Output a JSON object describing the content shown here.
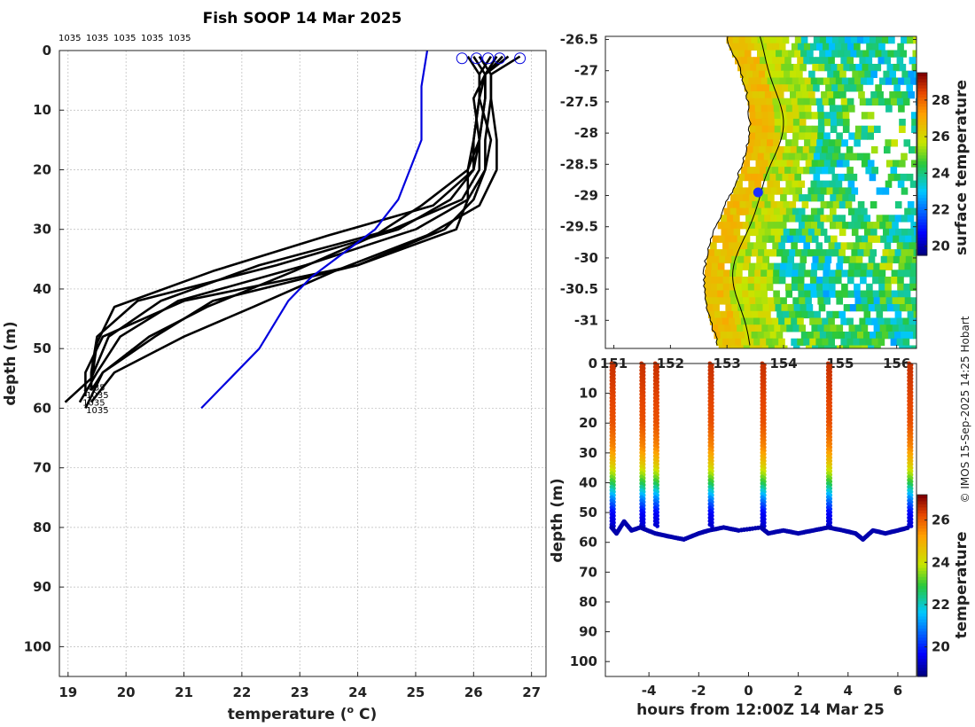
{
  "chart_data": [
    {
      "id": "profiles",
      "type": "line",
      "title": "Fish SOOP 14 Mar 2025",
      "xlabel": "temperature (",
      "xlabel_sup": "o",
      "xlabel_end": " C)",
      "ylabel": "depth (m)",
      "xlim": [
        18.85,
        27.25
      ],
      "ylim": [
        105,
        0
      ],
      "xticks": [
        19,
        20,
        21,
        22,
        23,
        24,
        25,
        26,
        27
      ],
      "yticks": [
        0,
        10,
        20,
        30,
        40,
        50,
        60,
        70,
        80,
        90,
        100
      ],
      "top_labels": [
        "1035",
        "1035",
        "1035",
        "1035",
        "1035"
      ],
      "bottom_labels": [
        "1035",
        "1035",
        "1035",
        "1035"
      ],
      "series": [
        {
          "name": "profile 1",
          "color": "#000000",
          "t": [
            26.0,
            26.2,
            26.0,
            26.1,
            25.9,
            25.9,
            25.7,
            24.0,
            21.0,
            19.6,
            19.3,
            19.3
          ],
          "d": [
            1,
            4,
            8,
            15,
            20,
            25,
            30,
            36,
            42,
            48,
            54,
            58
          ]
        },
        {
          "name": "profile 2",
          "color": "#000000",
          "t": [
            26.3,
            26.1,
            26.1,
            26.0,
            26.0,
            25.6,
            24.7,
            22.6,
            20.2,
            19.5,
            19.4,
            19.4
          ],
          "d": [
            1,
            4,
            8,
            15,
            20,
            25,
            30,
            36,
            42,
            48,
            54,
            57
          ]
        },
        {
          "name": "profile 3",
          "color": "#000000",
          "t": [
            26.5,
            26.2,
            26.2,
            26.1,
            26.0,
            25.3,
            23.5,
            21.5,
            19.8,
            19.5,
            19.4
          ],
          "d": [
            1,
            4,
            8,
            15,
            20,
            26,
            31,
            37,
            43,
            49,
            56
          ]
        },
        {
          "name": "profile 4",
          "color": "#000000",
          "t": [
            26.8,
            26.3,
            26.3,
            26.2,
            26.2,
            25.9,
            25.0,
            23.1,
            20.9,
            19.9,
            19.5,
            19.2
          ],
          "d": [
            1,
            4,
            8,
            15,
            20,
            25,
            30,
            36,
            42,
            48,
            54,
            59
          ]
        },
        {
          "name": "profile 5",
          "color": "#000000",
          "t": [
            26.4,
            26.2,
            26.2,
            26.1,
            26.1,
            25.8,
            24.6,
            22.3,
            20.6,
            19.7,
            19.4,
            18.95
          ],
          "d": [
            1,
            4,
            8,
            15,
            20,
            25,
            30,
            36,
            42,
            48,
            55,
            59
          ]
        },
        {
          "name": "profile 6",
          "color": "#000000",
          "t": [
            26.6,
            26.2,
            26.1,
            26.3,
            26.2,
            26.0,
            25.5,
            24.0,
            21.5,
            20.5,
            19.6,
            19.3
          ],
          "d": [
            1,
            4,
            8,
            15,
            20,
            25,
            30,
            36,
            42,
            48,
            54,
            60
          ]
        },
        {
          "name": "profile 7",
          "color": "#000000",
          "t": [
            26.1,
            26.3,
            26.3,
            26.4,
            26.4,
            26.1,
            25.2,
            23.6,
            22.2,
            21.0,
            19.8,
            19.4
          ],
          "d": [
            1,
            4,
            8,
            15,
            20,
            26,
            31,
            37,
            43,
            48,
            54,
            59
          ]
        },
        {
          "name": "profile 8",
          "color": "#000000",
          "t": [
            25.9,
            26.1,
            26.1,
            26.0,
            25.9,
            25.1,
            24.3,
            22.9,
            21.4,
            20.4,
            19.6,
            19.4
          ],
          "d": [
            1,
            4,
            8,
            15,
            20,
            26,
            31,
            37,
            43,
            48,
            54,
            57
          ]
        },
        {
          "name": "reference",
          "color": "#0000dd",
          "t": [
            25.2,
            25.1,
            25.1,
            24.7,
            24.3,
            23.2,
            22.8,
            22.3,
            21.3
          ],
          "d": [
            0,
            6,
            15,
            25,
            30,
            38,
            42,
            50,
            60
          ]
        }
      ],
      "surface_markers": [
        25.8,
        26.05,
        26.25,
        26.45,
        26.8
      ]
    },
    {
      "id": "map",
      "type": "heatmap",
      "colorbar_label": "surface temperature",
      "colorbar_ticks": [
        20,
        22,
        24,
        26,
        28
      ],
      "colorbar_range": [
        19.5,
        29.5
      ],
      "xlim": [
        150.85,
        156.35
      ],
      "ylim": [
        -31.45,
        -26.45
      ],
      "xticks": [
        151,
        152,
        153,
        154,
        155,
        156
      ],
      "ytick_labels": [
        "-26.5",
        "-27",
        "-27.5",
        "-28",
        "-28.5",
        "-29",
        "-29.5",
        "-30",
        "-30.5",
        "-31"
      ],
      "ytick_values": [
        -26.5,
        -27,
        -27.5,
        -28,
        -28.5,
        -29,
        -29.5,
        -30,
        -30.5,
        -31
      ],
      "vessel_position": [
        153.55,
        -28.95
      ]
    },
    {
      "id": "timeseries",
      "type": "scatter",
      "xlabel": "hours from 12:00Z 14 Mar 25",
      "ylabel": "depth (m)",
      "colorbar_label": "temperature",
      "colorbar_ticks": [
        20,
        22,
        24,
        26
      ],
      "colorbar_range": [
        18.6,
        27.2
      ],
      "xlim": [
        -5.75,
        6.75
      ],
      "ylim": [
        105,
        0
      ],
      "xticks": [
        -4,
        -2,
        0,
        2,
        4,
        6
      ],
      "yticks": [
        0,
        10,
        20,
        30,
        40,
        50,
        60,
        70,
        80,
        90,
        100
      ],
      "casts": [
        -5.5,
        -4.3,
        -3.75,
        -1.55,
        0.55,
        3.2,
        6.45
      ],
      "bottom_path": {
        "h": [
          -5.5,
          -5.3,
          -5.0,
          -4.7,
          -4.35,
          -3.75,
          -3.2,
          -2.6,
          -2.0,
          -1.6,
          -1.0,
          -0.4,
          0.5,
          0.8,
          1.4,
          2.0,
          2.6,
          3.2,
          3.8,
          4.3,
          4.6,
          5.0,
          5.5,
          6.0,
          6.45
        ],
        "d": [
          55,
          57,
          53,
          56,
          55,
          57,
          58,
          59,
          57,
          56,
          55,
          56,
          55,
          57,
          56,
          57,
          56,
          55,
          56,
          57,
          59,
          56,
          57,
          56,
          55
        ]
      }
    }
  ],
  "credit": "© IMOS 15-Sep-2025 14:25 Hobart"
}
